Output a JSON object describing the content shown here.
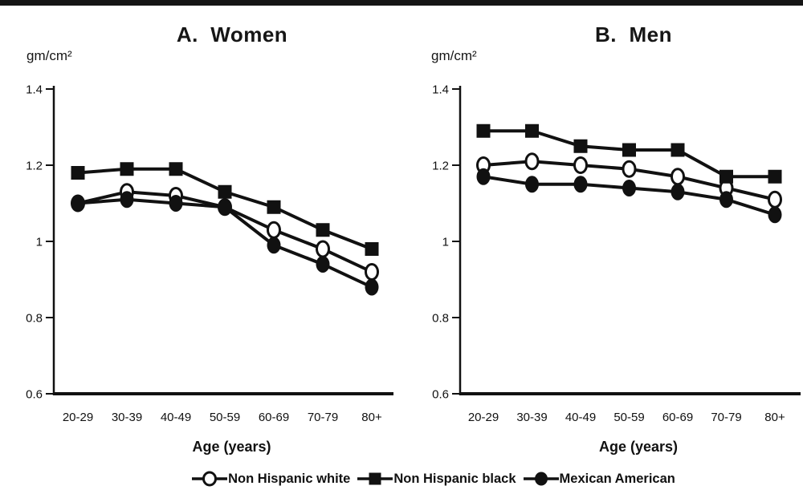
{
  "figure": {
    "top_border": true,
    "accent_color": "#111111",
    "background_color": "#ffffff"
  },
  "chart_data": [
    {
      "type": "line",
      "title": "A.  Women",
      "ylabel": "gm/cm²",
      "xlabel": "Age (years)",
      "categories": [
        "20-29",
        "30-39",
        "40-49",
        "50-59",
        "60-69",
        "70-79",
        "80+"
      ],
      "ylim": [
        0.6,
        1.4
      ],
      "yticks": [
        1.4,
        1.2,
        1.0,
        0.8,
        0.6
      ],
      "ytick_labels": [
        "1.4",
        "1.2",
        "1",
        "0.8",
        "0.6"
      ],
      "grid": false,
      "series": [
        {
          "name": "Non Hispanic white",
          "marker": "open-circle",
          "values": [
            1.1,
            1.13,
            1.12,
            1.09,
            1.03,
            0.98,
            0.92
          ]
        },
        {
          "name": "Non Hispanic black",
          "marker": "filled-square",
          "values": [
            1.18,
            1.19,
            1.19,
            1.13,
            1.09,
            1.03,
            0.98
          ]
        },
        {
          "name": "Mexican American",
          "marker": "filled-circle",
          "values": [
            1.1,
            1.11,
            1.1,
            1.09,
            0.99,
            0.94,
            0.88
          ]
        }
      ]
    },
    {
      "type": "line",
      "title": "B.  Men",
      "ylabel": "gm/cm²",
      "xlabel": "Age (years)",
      "categories": [
        "20-29",
        "30-39",
        "40-49",
        "50-59",
        "60-69",
        "70-79",
        "80+"
      ],
      "ylim": [
        0.6,
        1.4
      ],
      "yticks": [
        1.4,
        1.2,
        1.0,
        0.8,
        0.6
      ],
      "ytick_labels": [
        "1.4",
        "1.2",
        "1",
        "0.8",
        "0.6"
      ],
      "grid": false,
      "series": [
        {
          "name": "Non Hispanic white",
          "marker": "open-circle",
          "values": [
            1.2,
            1.21,
            1.2,
            1.19,
            1.17,
            1.14,
            1.11
          ]
        },
        {
          "name": "Non Hispanic black",
          "marker": "filled-square",
          "values": [
            1.29,
            1.29,
            1.25,
            1.24,
            1.24,
            1.17,
            1.17
          ]
        },
        {
          "name": "Mexican American",
          "marker": "filled-circle",
          "values": [
            1.17,
            1.15,
            1.15,
            1.14,
            1.13,
            1.11,
            1.07
          ]
        }
      ]
    }
  ],
  "legend": {
    "position": "bottom-center",
    "items": [
      {
        "label": "Non Hispanic white",
        "marker": "open-circle"
      },
      {
        "label": "Non Hispanic black",
        "marker": "filled-square"
      },
      {
        "label": "Mexican American",
        "marker": "filled-circle"
      }
    ]
  }
}
